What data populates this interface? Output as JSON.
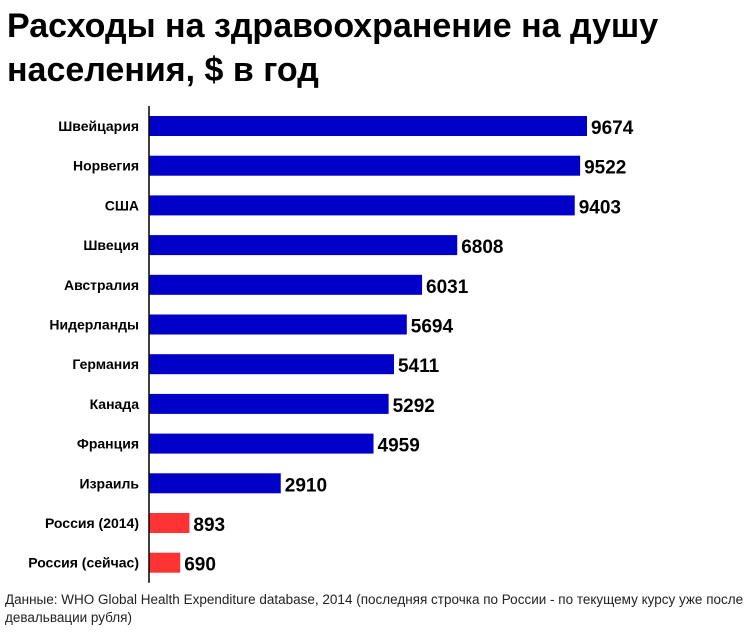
{
  "title": "Расходы на здравоохранение на душу населения, $ в год",
  "source": "Данные: WHO Global Health Expenditure database, 2014 (последняя строчка по России - по текущему курсу уже после девальвации рубля)",
  "colors": {
    "main_bar": "#0000c8",
    "highlight_bar": "#ff3333",
    "axis": "#000000"
  },
  "chart_data": {
    "type": "bar",
    "orientation": "horizontal",
    "title": "Расходы на здравоохранение на душу населения, $ в год",
    "xlabel": "",
    "ylabel": "",
    "categories": [
      "Швейцария",
      "Норвегия",
      "США",
      "Швеция",
      "Австралия",
      "Нидерланды",
      "Германия",
      "Канада",
      "Франция",
      "Израиль",
      "Россия (2014)",
      "Россия (сейчас)"
    ],
    "values": [
      9674,
      9522,
      9403,
      6808,
      6031,
      5694,
      5411,
      5292,
      4959,
      2910,
      893,
      690
    ],
    "highlighted": [
      false,
      false,
      false,
      false,
      false,
      false,
      false,
      false,
      false,
      false,
      true,
      true
    ],
    "xlim": [
      0,
      10000
    ],
    "grid": false,
    "legend": "none",
    "data_labels": true
  }
}
